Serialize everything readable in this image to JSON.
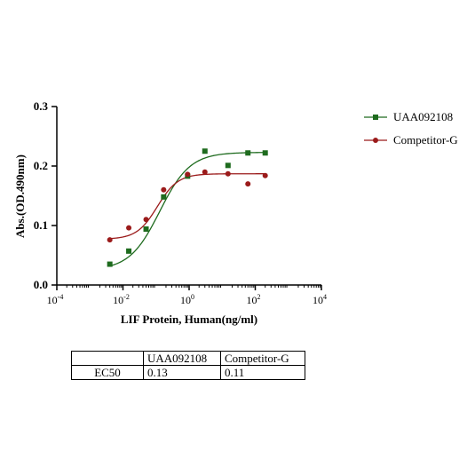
{
  "chart_data": {
    "type": "scatter",
    "xlabel": "LIF Protein, Human(ng/ml)",
    "ylabel": "Abs.(OD.490nm)",
    "x_scale": "log10",
    "xlim": [
      0.0001,
      10000
    ],
    "ylim": [
      0.0,
      0.3
    ],
    "x_ticks": [
      {
        "base": "10",
        "exp": "-4"
      },
      {
        "base": "10",
        "exp": "-2"
      },
      {
        "base": "10",
        "exp": "0"
      },
      {
        "base": "10",
        "exp": "2"
      },
      {
        "base": "10",
        "exp": "4"
      }
    ],
    "y_ticks": [
      "0.0",
      "0.1",
      "0.2",
      "0.3"
    ],
    "y_tick_values": [
      0.0,
      0.1,
      0.2,
      0.3
    ],
    "grid": false,
    "legend": "right",
    "series": [
      {
        "name": "UAA092108",
        "color": "#1e6b1e",
        "marker": "square",
        "x": [
          0.004,
          0.015,
          0.05,
          0.17,
          0.9,
          3.0,
          15.0,
          60.0,
          200.0
        ],
        "y": [
          0.035,
          0.057,
          0.094,
          0.148,
          0.183,
          0.225,
          0.201,
          0.222,
          0.222
        ],
        "fit": {
          "bottom": 0.025,
          "top": 0.223,
          "ec50": 0.13,
          "hill": 0.95
        }
      },
      {
        "name": "Competitor-G",
        "color": "#9b1b1b",
        "marker": "circle",
        "x": [
          0.004,
          0.015,
          0.05,
          0.17,
          0.9,
          3.0,
          15.0,
          60.0,
          200.0
        ],
        "y": [
          0.076,
          0.096,
          0.11,
          0.16,
          0.186,
          0.19,
          0.187,
          0.17,
          0.184
        ],
        "fit": {
          "bottom": 0.077,
          "top": 0.187,
          "ec50": 0.11,
          "hill": 1.4
        }
      }
    ]
  },
  "table": {
    "headers": [
      "",
      "UAA092108",
      "Competitor-G"
    ],
    "rows": [
      {
        "label": "EC50",
        "values": [
          "0.13",
          "0.11"
        ]
      }
    ]
  }
}
